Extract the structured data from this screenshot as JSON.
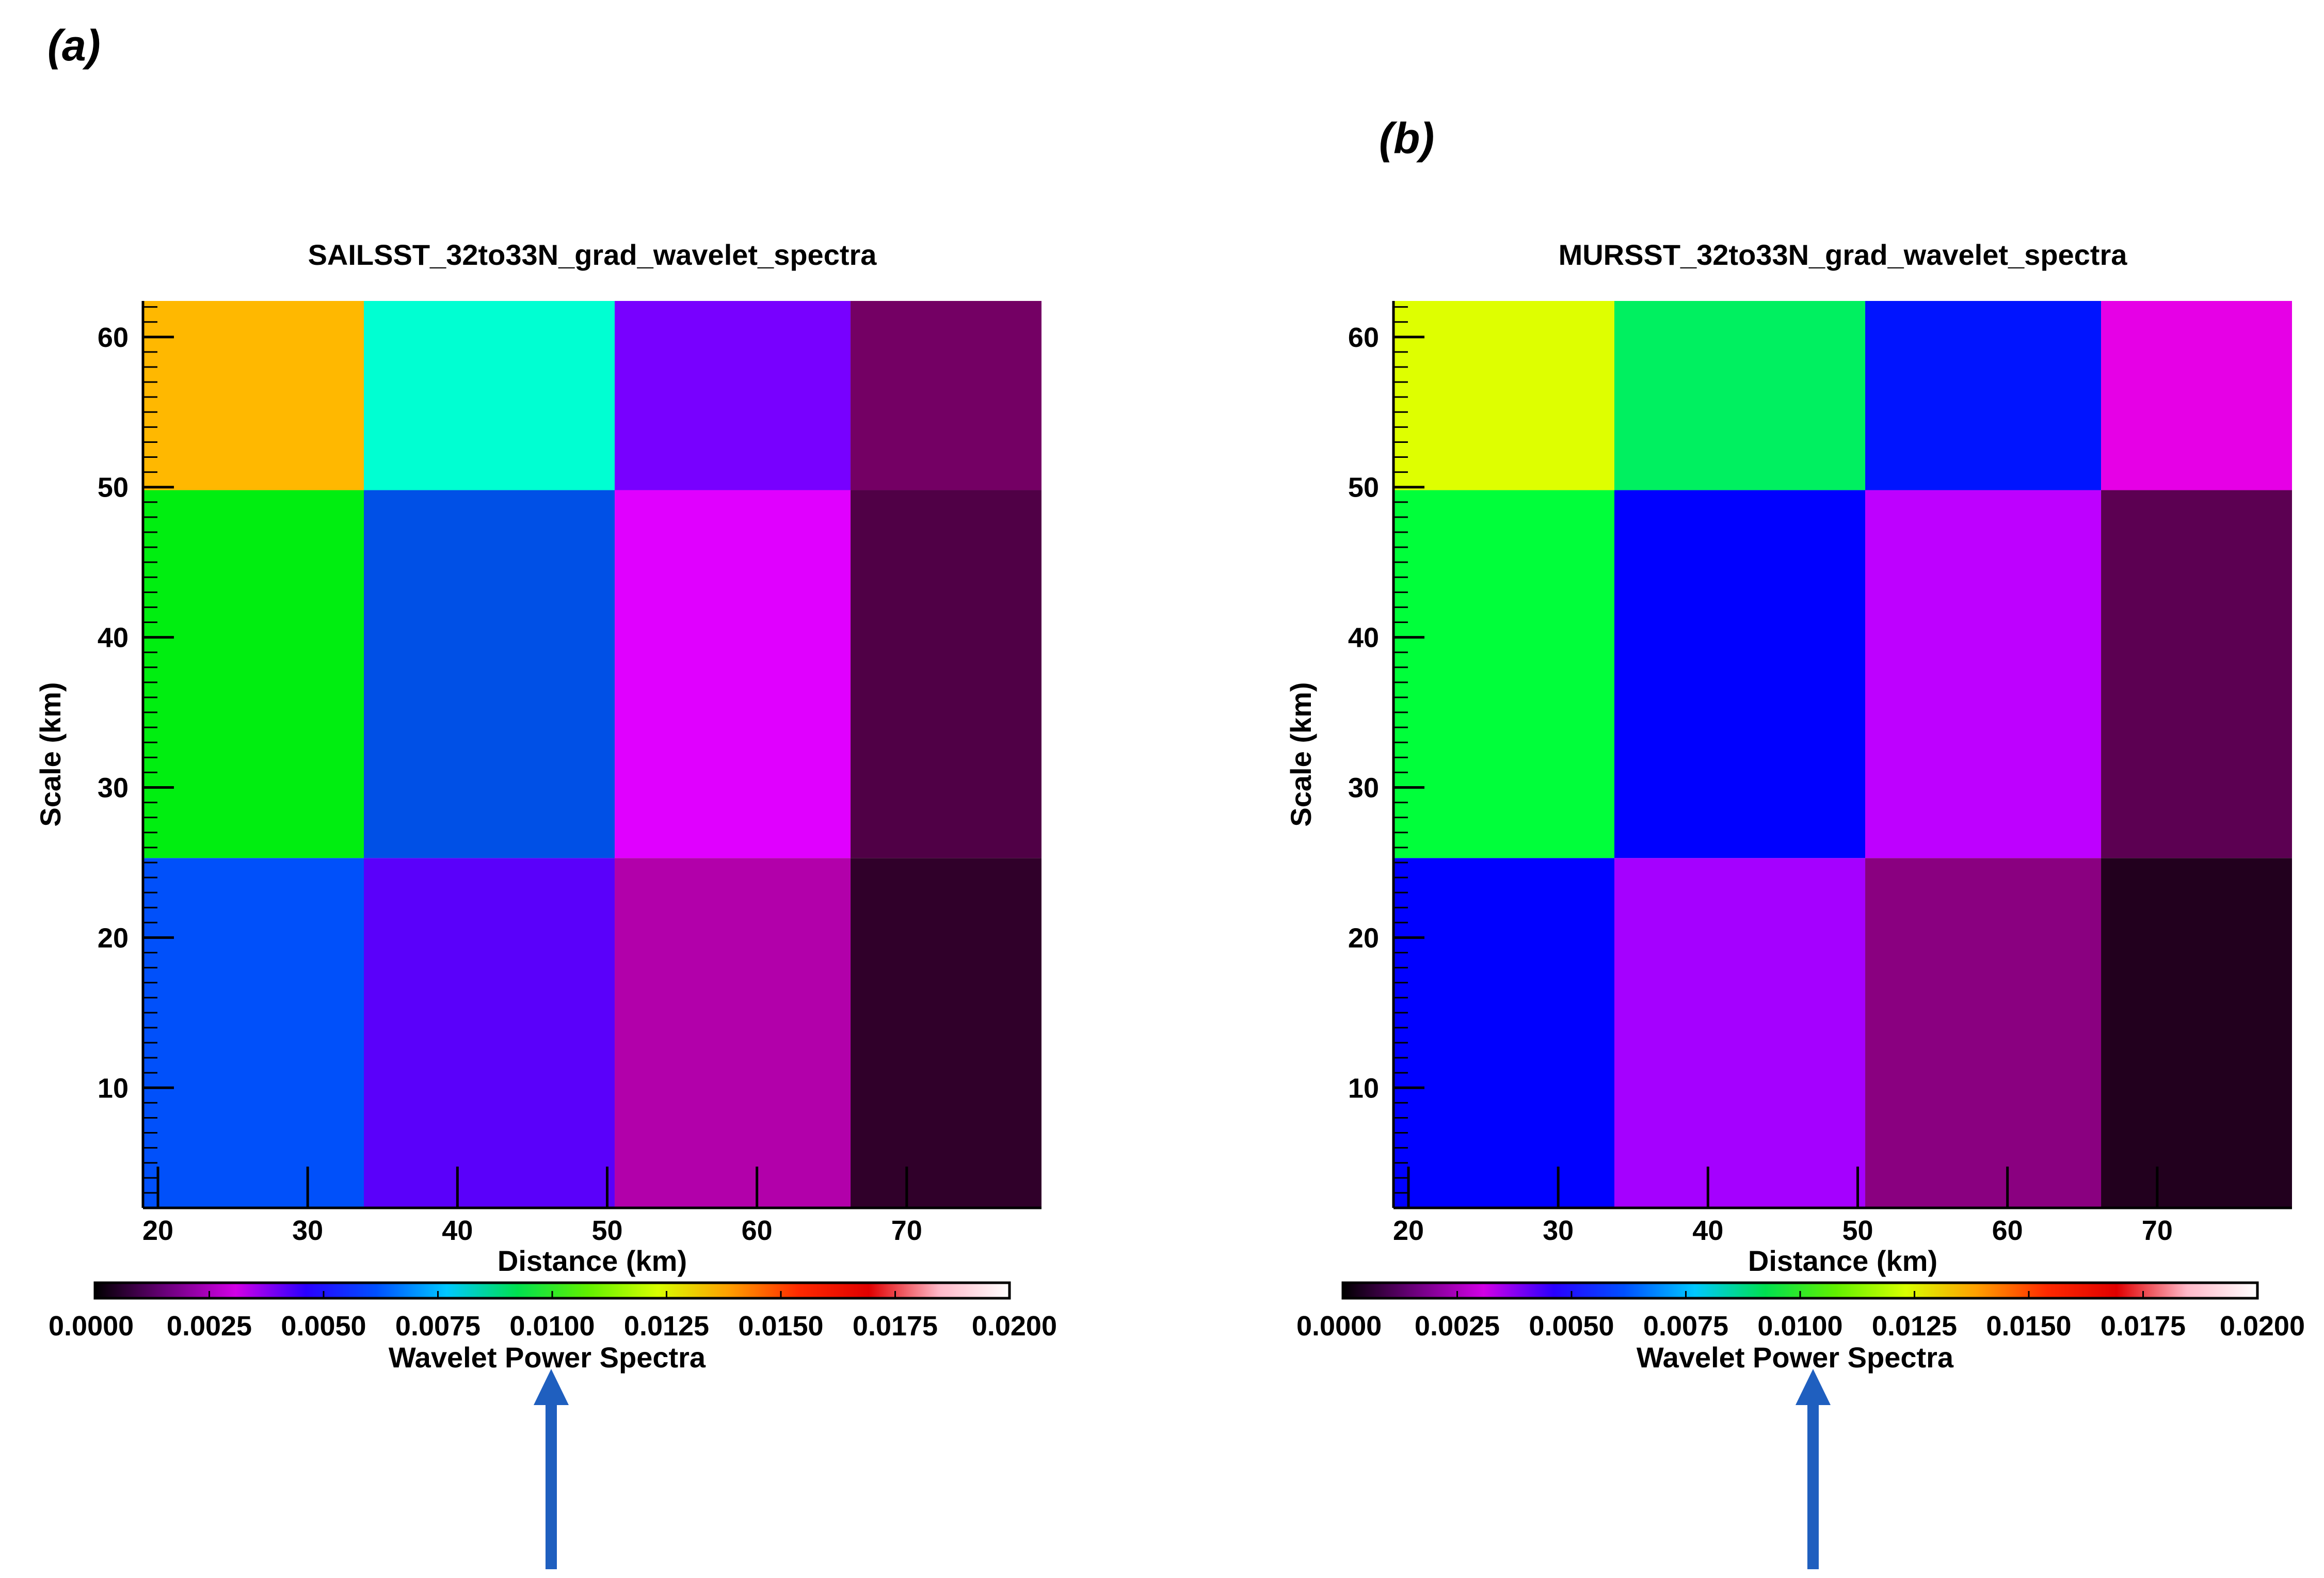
{
  "panels": [
    {
      "label": "(a)"
    },
    {
      "label": "(b)"
    }
  ],
  "chart_data": [
    {
      "type": "heatmap",
      "title": "SAILSST_32to33N_grad_wavelet_spectra",
      "xlabel": "Distance (km)",
      "ylabel": "Scale (km)",
      "x_edges": [
        19,
        33.75,
        50.5,
        66.25,
        79
      ],
      "y_edges": [
        2,
        25.3,
        49.8,
        62.4
      ],
      "xlim": [
        19,
        79
      ],
      "ylim": [
        2,
        62.4
      ],
      "xticks": [
        20,
        30,
        40,
        50,
        60,
        70
      ],
      "yticks": [
        10,
        20,
        30,
        40,
        50,
        60
      ],
      "values": [
        [
          0.0048,
          0.0058,
          0.0029,
          0.0003
        ],
        [
          0.0113,
          0.0051,
          0.0025,
          0.0007
        ],
        [
          0.0148,
          0.0091,
          0.0055,
          0.0013
        ]
      ],
      "cell_colors": [
        [
          "#0050FA",
          "#5A00FA",
          "#B200AA",
          "#30002A"
        ],
        [
          "#00EE10",
          "#0050E6",
          "#E000FF",
          "#500046"
        ],
        [
          "#FFB800",
          "#00FFD2",
          "#7800FF",
          "#740064"
        ]
      ],
      "colorbar": {
        "label": "Wavelet Power Spectra",
        "range": [
          0.0,
          0.02
        ],
        "tick_labels": [
          "0.0000",
          "0.0025",
          "0.0050",
          "0.0075",
          "0.0100",
          "0.0125",
          "0.0150",
          "0.0175",
          "0.0200"
        ]
      }
    },
    {
      "type": "heatmap",
      "title": "MURSST_32to33N_grad_wavelet_spectra",
      "xlabel": "Distance (km)",
      "ylabel": "Scale (km)",
      "x_edges": [
        19,
        33.75,
        50.5,
        66.25,
        79
      ],
      "y_edges": [
        2,
        25.3,
        49.8,
        62.4
      ],
      "xlim": [
        19,
        79
      ],
      "ylim": [
        2,
        62.4
      ],
      "xticks": [
        20,
        30,
        40,
        50,
        60,
        70
      ],
      "yticks": [
        10,
        20,
        30,
        40,
        50,
        60
      ],
      "values": [
        [
          0.0052,
          0.0033,
          0.002,
          0.0002
        ],
        [
          0.0113,
          0.0051,
          0.003,
          0.0009
        ],
        [
          0.014,
          0.0113,
          0.0052,
          0.0026
        ]
      ],
      "cell_colors": [
        [
          "#0000FF",
          "#A500FF",
          "#8A0080",
          "#22001E"
        ],
        [
          "#00FF3A",
          "#0000FF",
          "#BE00FF",
          "#5C0052"
        ],
        [
          "#DEFF00",
          "#00F060",
          "#0014FF",
          "#E600E6"
        ]
      ],
      "colorbar": {
        "label": "Wavelet Power Spectra",
        "range": [
          0.0,
          0.02
        ],
        "tick_labels": [
          "0.0000",
          "0.0025",
          "0.0050",
          "0.0075",
          "0.0100",
          "0.0125",
          "0.0150",
          "0.0175",
          "0.0200"
        ]
      }
    }
  ],
  "colors": {
    "arrow": "#1F5FBF",
    "colorbar_stops": [
      "#000000",
      "#6A007A",
      "#D200E6",
      "#2A00FF",
      "#0050FF",
      "#00C8FF",
      "#00E050",
      "#60F000",
      "#D8FF00",
      "#FFA000",
      "#FF2A00",
      "#E00000",
      "#FFB8C8",
      "#FFFFFF"
    ]
  }
}
